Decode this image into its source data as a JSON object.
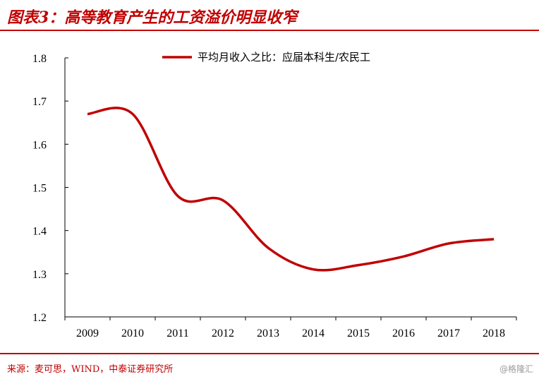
{
  "header": {
    "title": "图表3：高等教育产生的工资溢价明显收窄"
  },
  "footer": {
    "source": "来源：麦可思，WIND，中泰证券研究所",
    "watermark": "@格隆汇"
  },
  "chart_data": {
    "type": "line",
    "title": "",
    "xlabel": "",
    "ylabel": "",
    "categories": [
      "2009",
      "2010",
      "2011",
      "2012",
      "2013",
      "2014",
      "2015",
      "2016",
      "2017",
      "2018"
    ],
    "series": [
      {
        "name": "平均月收入之比：应届本科生/农民工",
        "color": "#c00000",
        "values": [
          1.67,
          1.67,
          1.48,
          1.47,
          1.36,
          1.31,
          1.32,
          1.34,
          1.37,
          1.38
        ]
      }
    ],
    "ylim": [
      1.2,
      1.8
    ],
    "yticks": [
      "1.2",
      "1.3",
      "1.4",
      "1.5",
      "1.6",
      "1.7",
      "1.8"
    ],
    "grid": false,
    "legend_position": "top"
  }
}
